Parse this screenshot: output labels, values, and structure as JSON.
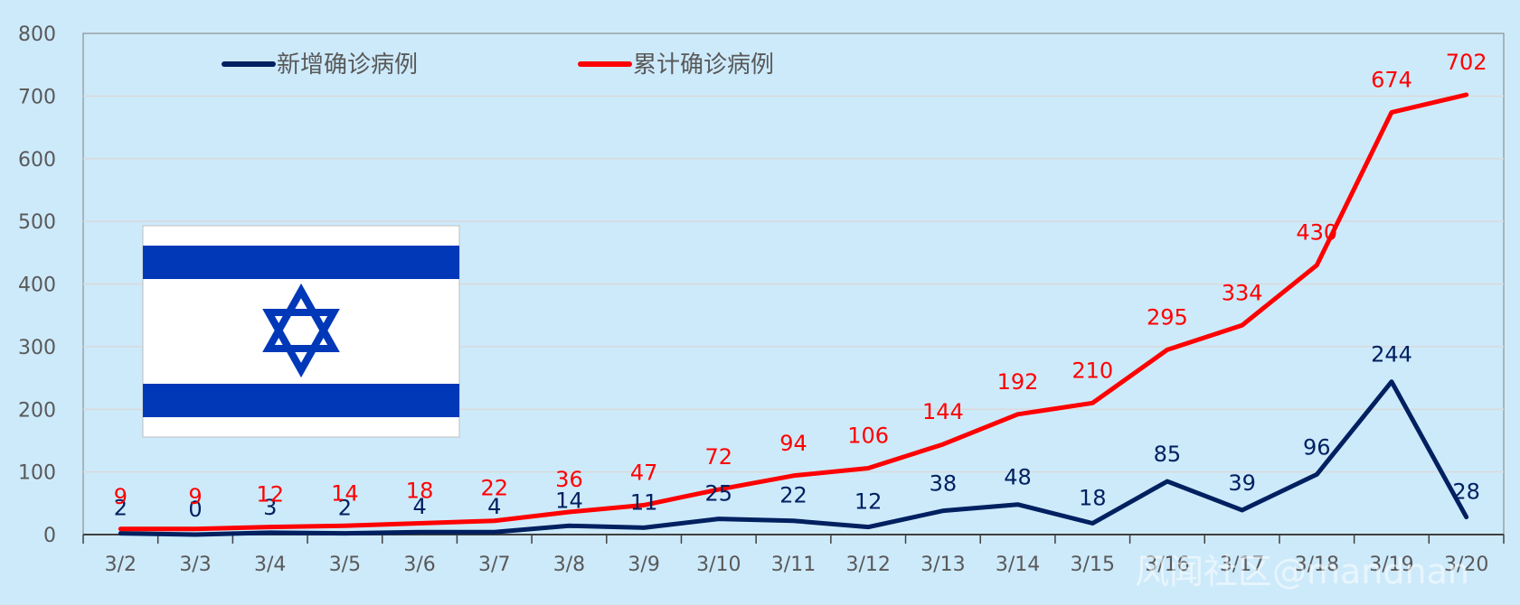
{
  "chart_data": {
    "type": "line",
    "categories": [
      "3/2",
      "3/3",
      "3/4",
      "3/5",
      "3/6",
      "3/7",
      "3/8",
      "3/9",
      "3/10",
      "3/11",
      "3/12",
      "3/13",
      "3/14",
      "3/15",
      "3/16",
      "3/17",
      "3/18",
      "3/19",
      "3/20"
    ],
    "series": [
      {
        "name": "新增确诊病例",
        "color": "#002060",
        "values": [
          2,
          0,
          3,
          2,
          4,
          4,
          14,
          11,
          25,
          22,
          12,
          38,
          48,
          18,
          85,
          39,
          96,
          244,
          28
        ]
      },
      {
        "name": "累计确诊病例",
        "color": "#ff0000",
        "values": [
          9,
          9,
          12,
          14,
          18,
          22,
          36,
          47,
          72,
          94,
          106,
          144,
          192,
          210,
          295,
          334,
          430,
          674,
          702
        ]
      }
    ],
    "ylim": [
      0,
      800
    ],
    "yticks": [
      0,
      100,
      200,
      300,
      400,
      500,
      600,
      700,
      800
    ],
    "grid": true,
    "legend_position": "top-left"
  },
  "flag": {
    "name": "israel-flag",
    "colors": {
      "background": "#ffffff",
      "stripe": "#0038b8"
    }
  },
  "watermark": "风闻社区@mandnan"
}
